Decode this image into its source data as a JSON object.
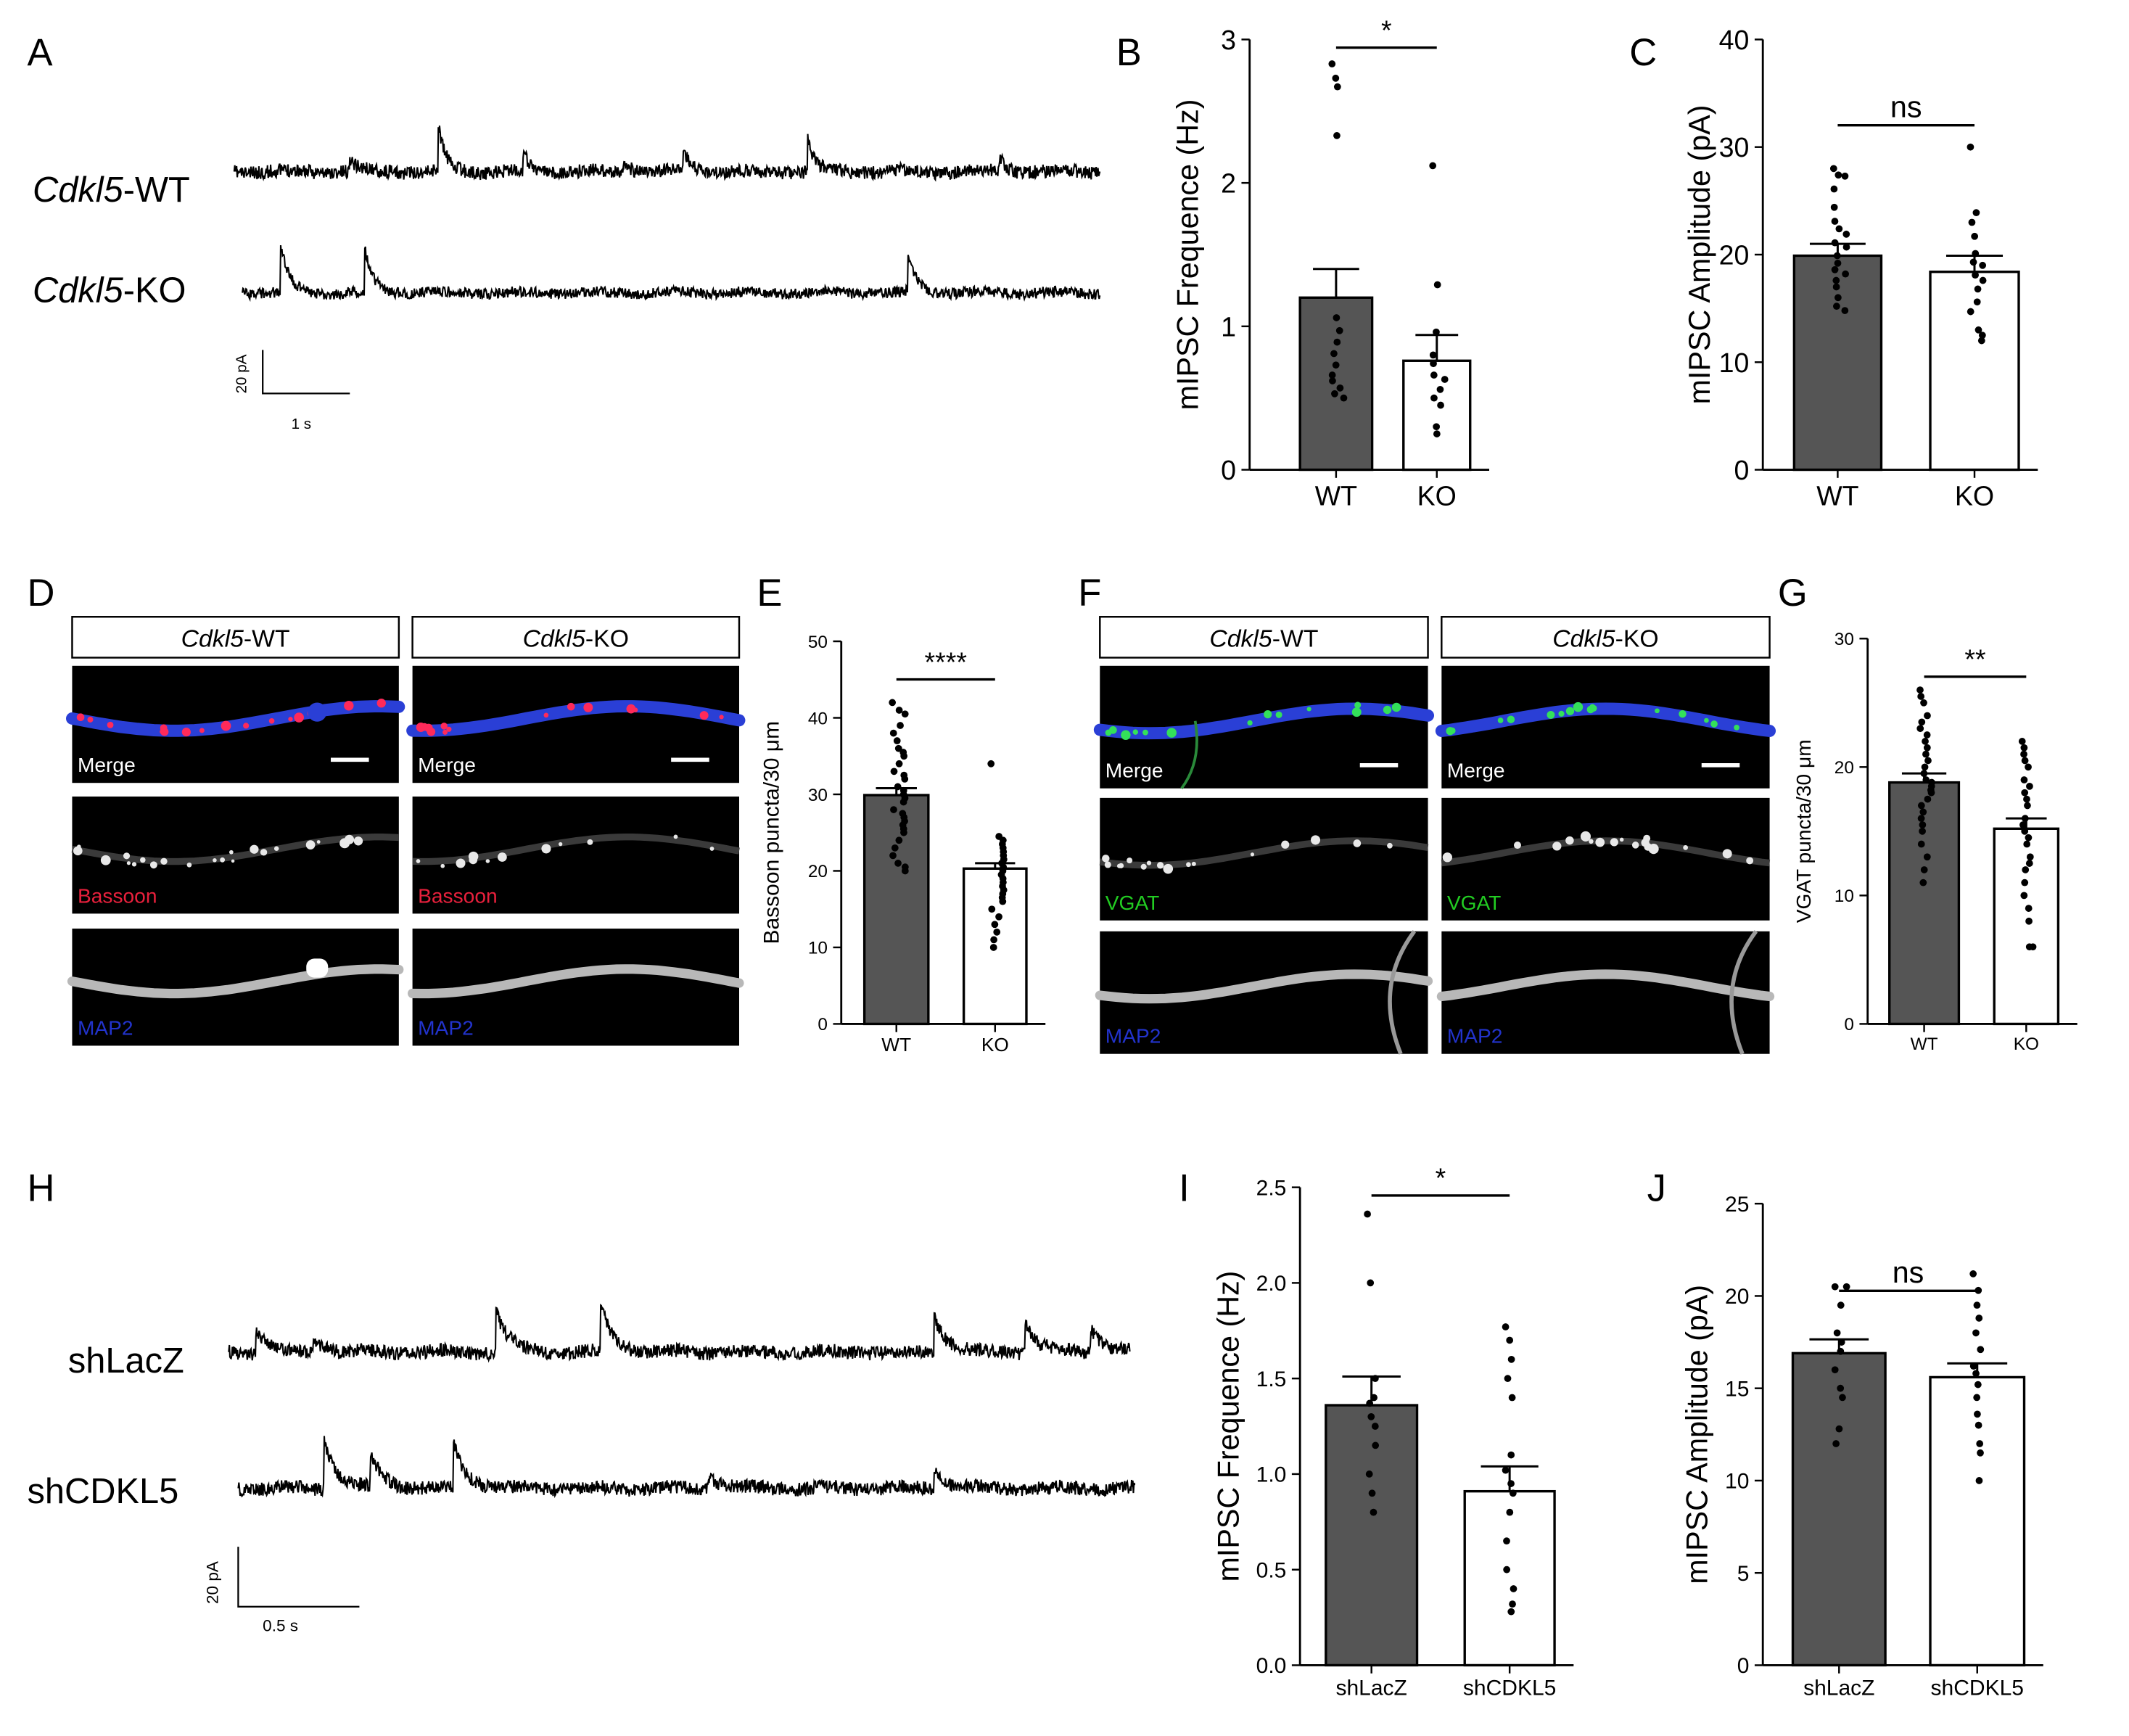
{
  "panel_labels": {
    "A": "A",
    "B": "B",
    "C": "C",
    "D": "D",
    "E": "E",
    "F": "F",
    "G": "G",
    "H": "H",
    "I": "I",
    "J": "J"
  },
  "colors": {
    "wt_bar": "#555555",
    "ko_bar": "#ffffff",
    "axis": "#000000",
    "bassoon": "#e8203c",
    "vgat": "#22cc22",
    "map2": "#2233cc",
    "merge": "#ffffff",
    "dendrite_blue": "#2a3fd6",
    "puncta_red": "#ff2a5a",
    "puncta_green": "#33e05a"
  },
  "traces": {
    "A": {
      "rows": [
        {
          "prefix": "Cdkl5",
          "suffix": "-WT"
        },
        {
          "prefix": "Cdkl5",
          "suffix": "-KO"
        }
      ],
      "scale_y": "20 pA",
      "scale_x": "1 s"
    },
    "H": {
      "rows": [
        {
          "label": "shLacZ"
        },
        {
          "label": "shCDKL5"
        }
      ],
      "scale_y": "20 pA",
      "scale_x": "0.5 s"
    }
  },
  "images": {
    "D": {
      "headers": [
        {
          "prefix": "Cdkl5",
          "suffix": "-WT"
        },
        {
          "prefix": "Cdkl5",
          "suffix": "-KO"
        }
      ],
      "rows": [
        "Merge",
        "Bassoon",
        "MAP2"
      ]
    },
    "F": {
      "headers": [
        {
          "prefix": "Cdkl5",
          "suffix": "-WT"
        },
        {
          "prefix": "Cdkl5",
          "suffix": "-KO"
        }
      ],
      "rows": [
        "Merge",
        "VGAT",
        "MAP2"
      ]
    }
  },
  "chart_data": [
    {
      "id": "B",
      "type": "bar",
      "categories": [
        "WT",
        "KO"
      ],
      "values": [
        1.2,
        0.76
      ],
      "sem": [
        0.2,
        0.18
      ],
      "ylabel": "mIPSC Frequence (Hz)",
      "ylim": [
        0,
        3
      ],
      "yticks": [
        "0",
        "1",
        "2",
        "3"
      ],
      "significance": "*",
      "points": [
        [
          2.83,
          2.73,
          2.67,
          2.33,
          1.06,
          0.97,
          0.89,
          0.81,
          0.73,
          0.66,
          0.62,
          0.57,
          0.53,
          0.5
        ],
        [
          2.12,
          1.29,
          0.96,
          0.8,
          0.74,
          0.66,
          0.63,
          0.56,
          0.5,
          0.45,
          0.3,
          0.25
        ]
      ]
    },
    {
      "id": "C",
      "type": "bar",
      "categories": [
        "WT",
        "KO"
      ],
      "values": [
        19.9,
        18.4
      ],
      "sem": [
        1.1,
        1.5
      ],
      "ylabel": "mIPSC Amplitude (pA)",
      "ylim": [
        0,
        40
      ],
      "yticks": [
        "0",
        "10",
        "20",
        "30",
        "40"
      ],
      "significance": "ns",
      "points": [
        [
          28.0,
          27.4,
          27.3,
          26.1,
          24.4,
          23.1,
          22.4,
          21.9,
          21.1,
          20.7,
          19.9,
          19.2,
          18.6,
          18.2,
          17.6,
          17.0,
          16.0,
          15.2,
          14.8
        ],
        [
          30.0,
          23.9,
          23.0,
          21.7,
          20.1,
          19.3,
          19.0,
          18.1,
          17.6,
          16.8,
          15.6,
          14.7,
          13.0,
          12.5,
          12.0
        ]
      ]
    },
    {
      "id": "E",
      "type": "bar",
      "categories": [
        "WT",
        "KO"
      ],
      "values": [
        29.9,
        20.3
      ],
      "sem": [
        0.9,
        0.7
      ],
      "ylabel": "Bassoon puncta/30 μm",
      "ylim": [
        0,
        50
      ],
      "yticks": [
        "0",
        "10",
        "20",
        "30",
        "40",
        "50"
      ],
      "significance": "****",
      "points": [
        [
          42,
          41,
          40.5,
          39,
          38,
          37,
          36,
          35.5,
          35,
          34,
          33,
          32.5,
          32,
          31,
          30.5,
          30,
          29.5,
          29,
          28,
          27.5,
          27,
          26.5,
          26,
          25.5,
          25,
          24,
          23,
          22,
          21,
          20.5,
          20
        ],
        [
          34,
          24.5,
          24,
          23.5,
          23,
          22.5,
          22,
          21.5,
          21,
          20.5,
          20,
          19.5,
          19,
          18.5,
          18,
          17.5,
          17,
          16.5,
          16,
          15,
          14,
          13,
          12,
          11,
          10
        ]
      ]
    },
    {
      "id": "G",
      "type": "bar",
      "categories": [
        "WT",
        "KO"
      ],
      "values": [
        18.8,
        15.2
      ],
      "sem": [
        0.7,
        0.8
      ],
      "ylabel": "VGAT puncta/30 μm",
      "ylim": [
        0,
        30
      ],
      "yticks": [
        "0",
        "10",
        "20",
        "30"
      ],
      "significance": "**",
      "points": [
        [
          26,
          25.5,
          25,
          24,
          23.5,
          23,
          22.5,
          22,
          21.5,
          21,
          20.5,
          20,
          19.5,
          19,
          18.8,
          18.5,
          18.2,
          18,
          17.5,
          17,
          16.5,
          16,
          15.5,
          15,
          14,
          13,
          12,
          11
        ],
        [
          22,
          21.5,
          21,
          20.5,
          20,
          19,
          18.5,
          18,
          17.5,
          17,
          16,
          15.5,
          15,
          14.5,
          14,
          13,
          12.5,
          12,
          11,
          10,
          9,
          8,
          6,
          6
        ]
      ]
    },
    {
      "id": "I",
      "type": "bar",
      "categories": [
        "shLacZ",
        "shCDKL5"
      ],
      "values": [
        1.36,
        0.91
      ],
      "sem": [
        0.15,
        0.13
      ],
      "ylabel": "mIPSC Frequence (Hz)",
      "ylim": [
        0,
        2.5
      ],
      "yticks": [
        "0.0",
        "0.5",
        "1.0",
        "1.5",
        "2.0",
        "2.5"
      ],
      "significance": "*",
      "points": [
        [
          2.36,
          2.0,
          1.5,
          1.4,
          1.37,
          1.3,
          1.25,
          1.15,
          1.0,
          0.9,
          0.8
        ],
        [
          1.77,
          1.7,
          1.6,
          1.5,
          1.4,
          1.1,
          1.02,
          0.95,
          0.9,
          0.8,
          0.65,
          0.5,
          0.4,
          0.32,
          0.28
        ]
      ]
    },
    {
      "id": "J",
      "type": "bar",
      "categories": [
        "shLacZ",
        "shCDKL5"
      ],
      "values": [
        16.9,
        15.6
      ],
      "sem": [
        0.75,
        0.75
      ],
      "ylabel": "mIPSC Amplitude (pA)",
      "ylim": [
        0,
        25
      ],
      "yticks": [
        "0",
        "5",
        "10",
        "15",
        "20",
        "25"
      ],
      "significance": "ns",
      "points": [
        [
          20.5,
          20.5,
          19.5,
          18.0,
          17.5,
          17.0,
          16.0,
          15.0,
          14.5,
          12.8,
          12.0
        ],
        [
          21.2,
          20.3,
          19.5,
          18.8,
          18.0,
          17.1,
          16.2,
          15.8,
          15.2,
          14.5,
          13.6,
          13.0,
          12.0,
          11.5,
          10.0
        ]
      ]
    }
  ]
}
